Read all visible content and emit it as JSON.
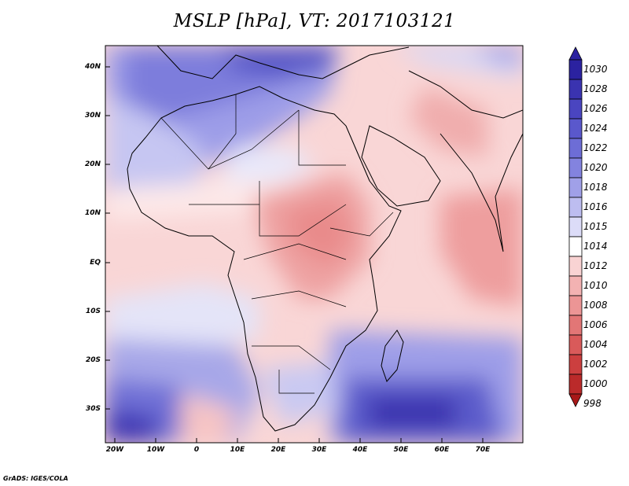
{
  "title": "MSLP [hPa], VT: 2017103121",
  "credit": "GrADS: IGES/COLA",
  "map": {
    "lat_labels": [
      "40N",
      "30N",
      "20N",
      "10N",
      "EQ",
      "10S",
      "20S",
      "30S"
    ],
    "lon_labels": [
      "20W",
      "10W",
      "0",
      "10E",
      "20E",
      "30E",
      "40E",
      "50E",
      "60E",
      "70E"
    ]
  },
  "colorbar": {
    "labels": [
      "1030",
      "1028",
      "1026",
      "1024",
      "1022",
      "1020",
      "1018",
      "1016",
      "1015",
      "1014",
      "1012",
      "1010",
      "1008",
      "1006",
      "1004",
      "1002",
      "1000",
      "998"
    ],
    "colors": [
      "#2b22a0",
      "#3a33b0",
      "#4a45c0",
      "#5a58cc",
      "#6d6dd6",
      "#8383df",
      "#a0a0e8",
      "#bdbdf0",
      "#dcdcf8",
      "#ffffff",
      "#f9d3d3",
      "#f3b2b2",
      "#ec9595",
      "#e27676",
      "#d95a5a",
      "#cc3f3f",
      "#bb2a2a",
      "#a81818"
    ]
  }
}
